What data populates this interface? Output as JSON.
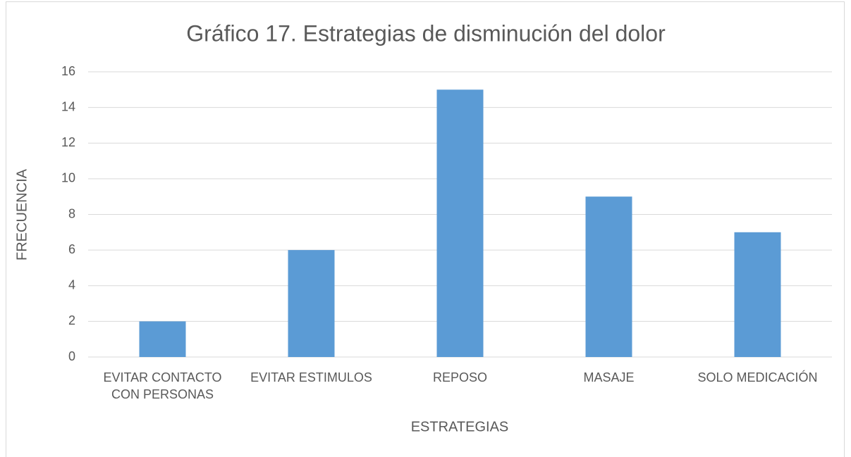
{
  "chart_data": {
    "type": "bar",
    "title": "Gráfico 17. Estrategias de disminución del dolor",
    "x_label": "ESTRATEGIAS",
    "y_label": "FRECUENCIA",
    "categories": [
      "EVITAR CONTACTO CON PERSONAS",
      "EVITAR ESTIMULOS",
      "REPOSO",
      "MASAJE",
      "SOLO MEDICACIÓN"
    ],
    "values": [
      2,
      6,
      15,
      9,
      7
    ],
    "color": "#5b9bd5",
    "ylim": [
      0,
      16
    ],
    "yticks": [
      0,
      2,
      4,
      6,
      8,
      10,
      12,
      14,
      16
    ],
    "grid": true
  }
}
